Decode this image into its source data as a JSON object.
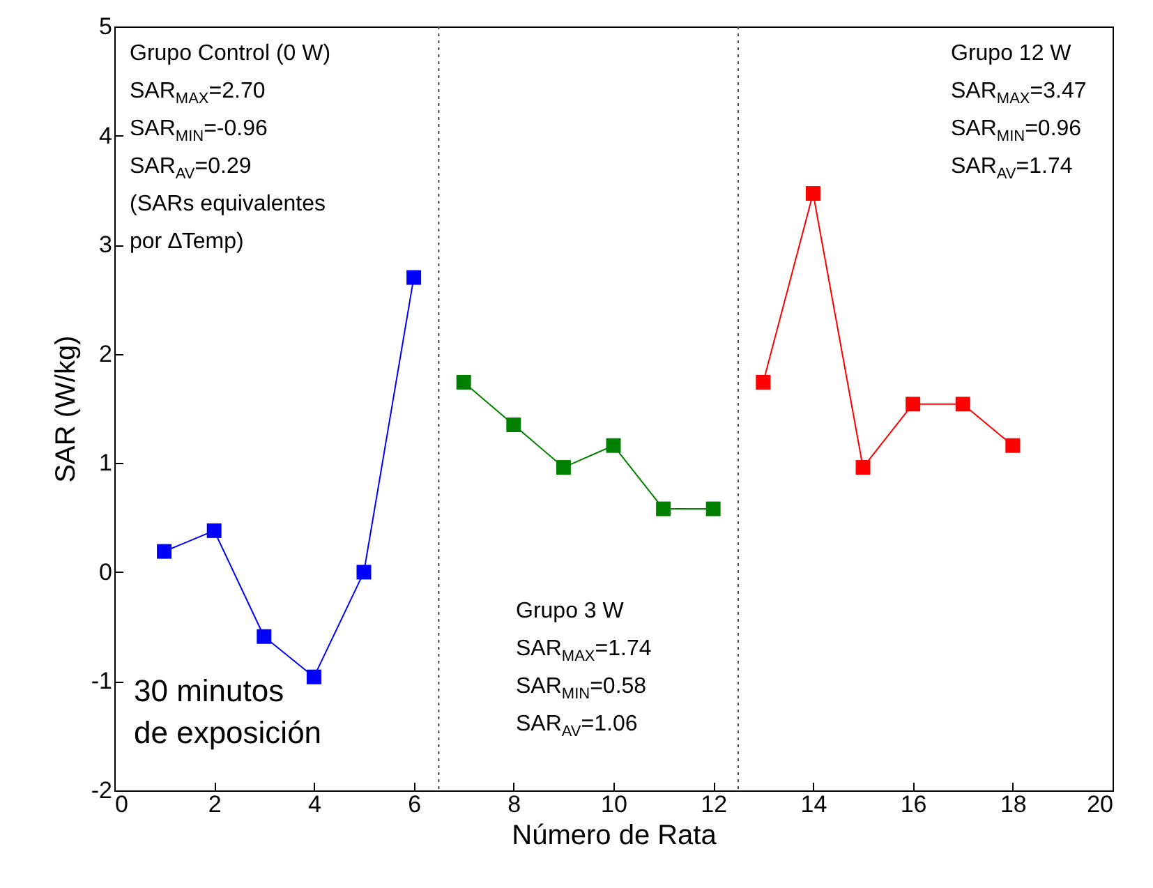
{
  "chart_data": {
    "type": "line",
    "xlabel": "Número de Rata",
    "ylabel": "SAR (W/kg)",
    "xlim": [
      0,
      20
    ],
    "xticks": [
      0,
      2,
      4,
      6,
      8,
      10,
      12,
      14,
      16,
      18,
      20
    ],
    "ylim": [
      -2,
      5
    ],
    "yticks": [
      -2,
      -1,
      0,
      1,
      2,
      3,
      4,
      5
    ],
    "marker": "square",
    "line_style": "solid",
    "series": [
      {
        "color": "#0000ff",
        "x": [
          1,
          2,
          3,
          4,
          5,
          6
        ],
        "values": [
          0.19,
          0.38,
          -0.59,
          -0.96,
          0.0,
          2.7
        ]
      },
      {
        "color": "#008000",
        "x": [
          7,
          8,
          9,
          10,
          11,
          12
        ],
        "values": [
          1.74,
          1.35,
          0.96,
          1.16,
          0.58,
          0.58
        ]
      },
      {
        "color": "#ff0000",
        "x": [
          13,
          14,
          15,
          16,
          17,
          18
        ],
        "values": [
          1.74,
          3.47,
          0.96,
          1.54,
          1.54,
          1.16
        ]
      }
    ],
    "ref_lines": [
      {
        "axis": "x",
        "value": 6.5,
        "color": "#444444",
        "line_style": "dotted"
      },
      {
        "axis": "x",
        "value": 12.5,
        "color": "#444444",
        "line_style": "dotted"
      }
    ],
    "annotations": [
      "Grupo Control (0 W)\nSAR$_{MAX}$=2.70\nSAR$_{MIN}$=-0.96\nSAR$_{AV}$=0.29\n(SARs equivalentes\npor ∆Temp)",
      "Grupo 12 W\nSAR$_{MAX}$=3.47\nSAR$_{MIN}$=0.96\nSAR$_{AV}$=1.74",
      "Grupo 3 W\nSAR$_{MAX}$=1.74\nSAR$_{MIN}$=0.58\nSAR$_{AV}$=1.06",
      "30 minutos\nde exposición"
    ]
  }
}
